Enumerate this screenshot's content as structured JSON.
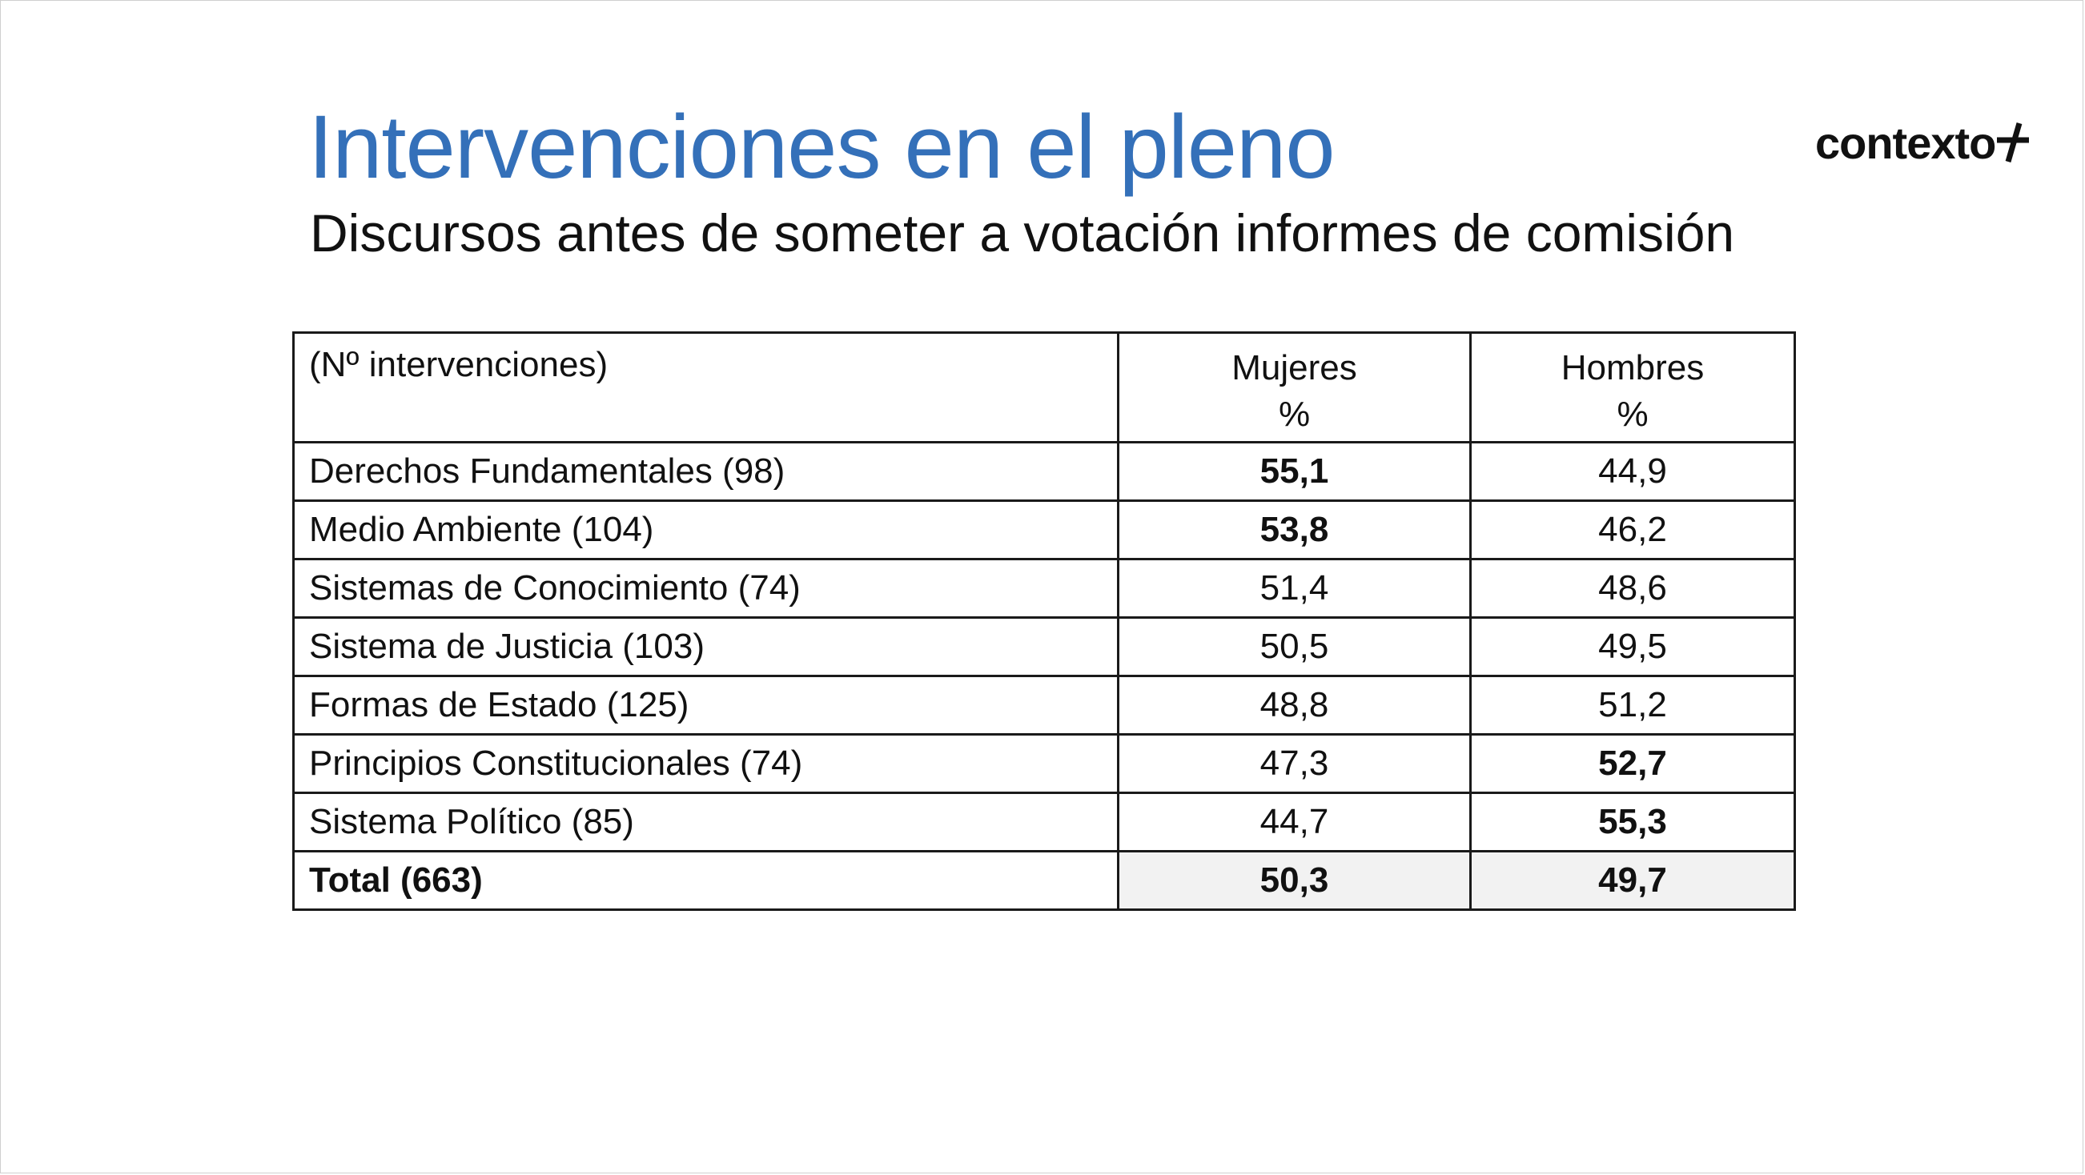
{
  "slide": {
    "title": "Intervenciones en el pleno",
    "subtitle": "Discursos antes de someter a votación informes de comisión",
    "logo_text": "contexto",
    "accent_color": "#3470b9"
  },
  "table": {
    "header": {
      "label": "(Nº intervenciones)",
      "col1": [
        "Mujeres",
        "%"
      ],
      "col2": [
        "Hombres",
        "%"
      ]
    },
    "rows": [
      {
        "label": "Derechos Fundamentales (98)",
        "mujeres": "55,1",
        "hombres": "44,9",
        "mujeres_bold": true,
        "hombres_bold": false
      },
      {
        "label": "Medio Ambiente (104)",
        "mujeres": "53,8",
        "hombres": "46,2",
        "mujeres_bold": true,
        "hombres_bold": false
      },
      {
        "label": "Sistemas de Conocimiento (74)",
        "mujeres": "51,4",
        "hombres": "48,6",
        "mujeres_bold": false,
        "hombres_bold": false
      },
      {
        "label": "Sistema de Justicia (103)",
        "mujeres": "50,5",
        "hombres": "49,5",
        "mujeres_bold": false,
        "hombres_bold": false
      },
      {
        "label": "Formas de Estado (125)",
        "mujeres": "48,8",
        "hombres": "51,2",
        "mujeres_bold": false,
        "hombres_bold": false
      },
      {
        "label": "Principios Constitucionales (74)",
        "mujeres": "47,3",
        "hombres": "52,7",
        "mujeres_bold": false,
        "hombres_bold": true
      },
      {
        "label": "Sistema Político (85)",
        "mujeres": "44,7",
        "hombres": "55,3",
        "mujeres_bold": false,
        "hombres_bold": true
      }
    ],
    "total": {
      "label": "Total (663)",
      "mujeres": "50,3",
      "hombres": "49,7"
    }
  }
}
